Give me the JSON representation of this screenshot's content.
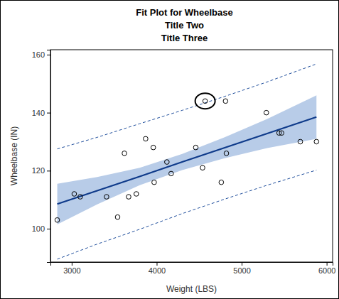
{
  "chart_data": {
    "type": "scatter",
    "title": "Fit Plot for Wheelbase",
    "subtitle": [
      "Title Two",
      "Title Three"
    ],
    "x_label": "Weight (LBS)",
    "y_label": "Wheelbase (IN)",
    "xlim": [
      2750,
      6070
    ],
    "ylim": [
      88.5,
      161.7
    ],
    "xticks": [
      3000,
      4000,
      5000,
      6000
    ],
    "yticks": [
      100,
      120,
      140,
      160
    ],
    "grid": false,
    "series": [
      {
        "type": "band",
        "color": "#b8cce8",
        "x": [
          2830,
          3300,
          3800,
          4300,
          4800,
          5300,
          5880
        ],
        "lower": [
          101.5,
          108.4,
          115.0,
          120.2,
          124.3,
          127.8,
          131.0
        ],
        "upper": [
          115.5,
          117.8,
          121.0,
          125.8,
          131.5,
          137.8,
          146.0
        ]
      },
      {
        "type": "line",
        "line_style": "dashed",
        "color": "#1f4e9c",
        "x": [
          2830,
          3300,
          3800,
          4300,
          4800,
          5300,
          5880
        ],
        "values": [
          127.5,
          131.5,
          136.2,
          140.8,
          145.6,
          150.6,
          156.8
        ]
      },
      {
        "type": "line",
        "line_style": "dashed",
        "color": "#1f4e9c",
        "x": [
          2830,
          3300,
          3800,
          4300,
          4800,
          5300,
          5880
        ],
        "values": [
          89.5,
          94.7,
          99.8,
          105.2,
          110.2,
          115.0,
          120.2
        ]
      },
      {
        "type": "line",
        "line_style": "solid",
        "color": "#0e3a8a",
        "x": [
          2830,
          3300,
          3800,
          4300,
          4800,
          5300,
          5880
        ],
        "values": [
          108.5,
          113.1,
          118.0,
          123.0,
          127.9,
          132.8,
          138.5
        ]
      },
      {
        "type": "scatter",
        "marker": "circle",
        "color": "#000000",
        "x": [
          2830,
          3030,
          3100,
          3410,
          3540,
          3620,
          3670,
          3760,
          3870,
          3960,
          3970,
          4120,
          4170,
          4460,
          4540,
          4570,
          4760,
          4810,
          4820,
          5290,
          5440,
          5470,
          5690,
          5880
        ],
        "values": [
          103,
          112,
          111,
          111,
          104,
          126,
          111,
          112,
          131,
          128,
          116,
          123,
          119,
          128,
          121,
          144,
          116,
          144,
          126,
          140,
          133,
          133,
          130,
          130
        ]
      },
      {
        "type": "scatter",
        "marker": "ellipse",
        "color": "#000000",
        "x": [
          4570
        ],
        "values": [
          144
        ]
      }
    ]
  }
}
